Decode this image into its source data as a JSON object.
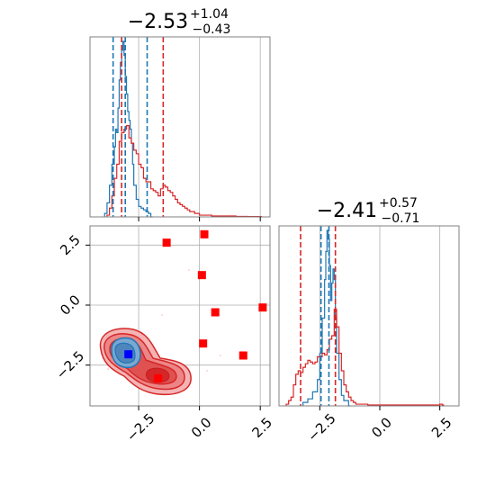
{
  "chart_data": {
    "type": "corner",
    "colors": {
      "red": "#d62728",
      "blue": "#1f77b4",
      "marker_red": "#ff0000",
      "marker_blue": "#0000ff",
      "grid": "#b0b0b0"
    },
    "panels": [
      {
        "id": "hist-param1",
        "type": "histogram",
        "title": {
          "median": "−2.53",
          "plus": "+1.04",
          "minus": "−0.43"
        },
        "xlim": [
          -4.5,
          2.9
        ],
        "grid": true,
        "quantiles": {
          "blue": [
            -3.55,
            -3.05,
            -2.15
          ],
          "red": [
            -3.2,
            -1.49
          ]
        },
        "series": [
          {
            "name": "",
            "color": "#1f77b4",
            "x": [
              -3.9,
              -3.8,
              -3.7,
              -3.6,
              -3.5,
              -3.45,
              -3.4,
              -3.35,
              -3.3,
              -3.25,
              -3.2,
              -3.15,
              -3.1,
              -3.05,
              -3.0,
              -2.95,
              -2.9,
              -2.85,
              -2.8,
              -2.75,
              -2.7,
              -2.6,
              -2.5,
              -2.4,
              -2.3,
              -2.2,
              -2.1,
              -2.0
            ],
            "y": [
              0.02,
              0.08,
              0.18,
              0.3,
              0.4,
              0.5,
              0.48,
              0.62,
              0.78,
              0.88,
              0.95,
              1.0,
              0.92,
              0.8,
              0.7,
              0.6,
              0.55,
              0.5,
              0.42,
              0.3,
              0.18,
              0.1,
              0.06,
              0.05,
              0.04,
              0.03,
              0.02,
              0.0
            ]
          },
          {
            "name": "",
            "color": "#d62728",
            "x": [
              -3.8,
              -3.7,
              -3.6,
              -3.5,
              -3.4,
              -3.3,
              -3.2,
              -3.1,
              -3.0,
              -2.9,
              -2.8,
              -2.7,
              -2.6,
              -2.5,
              -2.4,
              -2.3,
              -2.2,
              -2.1,
              -2.0,
              -1.9,
              -1.8,
              -1.7,
              -1.6,
              -1.5,
              -1.4,
              -1.3,
              -1.2,
              -1.1,
              -1.0,
              -0.9,
              -0.8,
              -0.7,
              -0.6,
              -0.5,
              -0.4,
              -0.2,
              0.0,
              0.5,
              1.0,
              1.5,
              2.0,
              2.5
            ],
            "y": [
              0.01,
              0.05,
              0.12,
              0.22,
              0.3,
              0.43,
              0.48,
              0.5,
              0.52,
              0.45,
              0.42,
              0.38,
              0.36,
              0.3,
              0.28,
              0.22,
              0.2,
              0.2,
              0.16,
              0.15,
              0.14,
              0.12,
              0.16,
              0.18,
              0.17,
              0.15,
              0.14,
              0.12,
              0.1,
              0.08,
              0.07,
              0.06,
              0.05,
              0.04,
              0.03,
              0.02,
              0.01,
              0.005,
              0.005,
              0.003,
              0.002,
              0.002
            ]
          }
        ]
      },
      {
        "id": "scatter-2d",
        "type": "2d-density",
        "xlim": [
          -4.5,
          2.9
        ],
        "ylim": [
          -4.2,
          3.3
        ],
        "xticks": [
          "−2.5",
          "0.0",
          "2.5"
        ],
        "yticks": [
          "2.5",
          "0.0",
          "−2.5"
        ],
        "xtick_values": [
          -2.5,
          0.0,
          2.5
        ],
        "ytick_values": [
          2.5,
          0.0,
          -2.5
        ],
        "grid": true,
        "blue_point": {
          "x": -2.92,
          "y": -2.05
        },
        "red_points": [
          {
            "x": -1.35,
            "y": 2.6
          },
          {
            "x": 0.2,
            "y": 2.95
          },
          {
            "x": 0.1,
            "y": 1.25
          },
          {
            "x": 0.65,
            "y": -0.3
          },
          {
            "x": 2.6,
            "y": -0.1
          },
          {
            "x": 0.15,
            "y": -1.6
          },
          {
            "x": 1.8,
            "y": -2.1
          },
          {
            "x": -1.7,
            "y": -3.05
          }
        ]
      },
      {
        "id": "hist-param2",
        "type": "histogram",
        "title": {
          "median": "−2.41",
          "plus": "+0.57",
          "minus": "−0.71"
        },
        "xlim": [
          -4.2,
          3.3
        ],
        "xticks": [
          "−2.5",
          "0.0",
          "2.5"
        ],
        "xtick_values": [
          -2.5,
          0.0,
          2.5
        ],
        "grid": true,
        "quantiles": {
          "blue": [
            -2.45,
            -2.12
          ],
          "red": [
            -3.3,
            -1.85
          ]
        },
        "series": [
          {
            "name": "",
            "color": "#1f77b4",
            "x": [
              -3.2,
              -3.0,
              -2.8,
              -2.6,
              -2.5,
              -2.4,
              -2.3,
              -2.25,
              -2.2,
              -2.15,
              -2.1,
              -2.05,
              -2.0,
              -1.95,
              -1.9,
              -1.85,
              -1.8,
              -1.7,
              -1.6,
              -1.5,
              -1.3
            ],
            "y": [
              0.02,
              0.04,
              0.08,
              0.15,
              0.3,
              0.5,
              0.72,
              0.88,
              1.0,
              0.95,
              0.8,
              0.6,
              0.7,
              0.78,
              0.72,
              0.5,
              0.3,
              0.15,
              0.06,
              0.03,
              0.0
            ]
          },
          {
            "name": "",
            "color": "#d62728",
            "x": [
              -3.9,
              -3.8,
              -3.7,
              -3.6,
              -3.5,
              -3.4,
              -3.3,
              -3.2,
              -3.1,
              -3.0,
              -2.9,
              -2.8,
              -2.7,
              -2.6,
              -2.5,
              -2.4,
              -2.3,
              -2.2,
              -2.1,
              -2.0,
              -1.9,
              -1.8,
              -1.7,
              -1.6,
              -1.5,
              -1.4,
              -1.3,
              -1.2,
              -1.1,
              -1.0,
              -0.5,
              0.0,
              1.0,
              2.0,
              2.5,
              2.6
            ],
            "y": [
              0.01,
              0.03,
              0.05,
              0.12,
              0.18,
              0.2,
              0.19,
              0.22,
              0.24,
              0.26,
              0.25,
              0.24,
              0.25,
              0.28,
              0.28,
              0.3,
              0.29,
              0.32,
              0.38,
              0.4,
              0.55,
              0.45,
              0.3,
              0.2,
              0.12,
              0.08,
              0.05,
              0.03,
              0.02,
              0.01,
              0.005,
              0.005,
              0.005,
              0.005,
              0.01,
              0.005
            ]
          }
        ]
      }
    ]
  }
}
